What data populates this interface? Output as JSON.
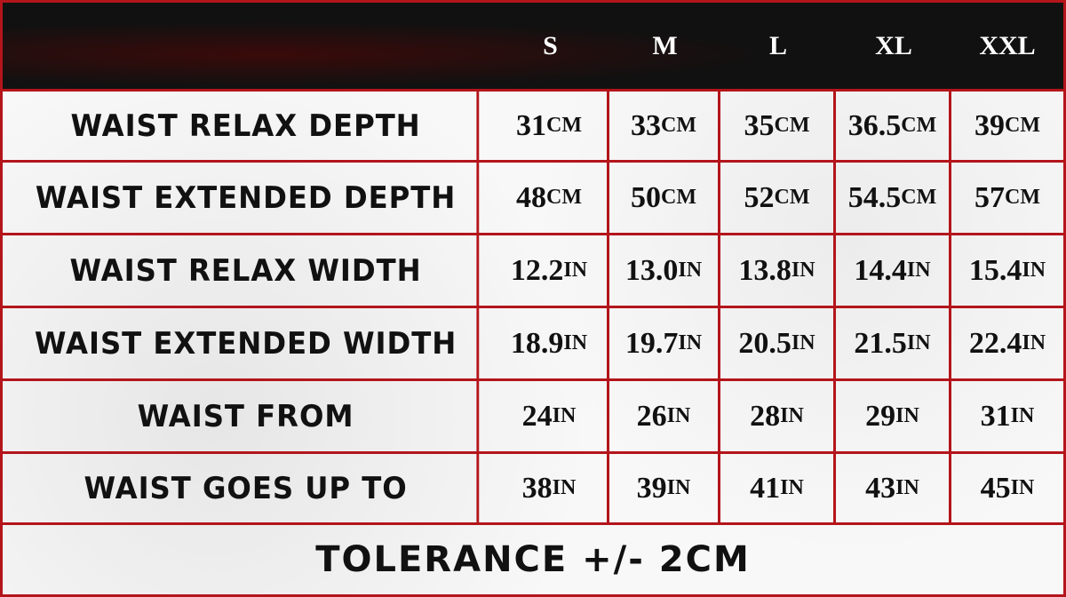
{
  "colors": {
    "border": "#b3151b",
    "header_bg": "#0d0d0d",
    "text": "#111111"
  },
  "sizes": [
    "S",
    "M",
    "L",
    "XL",
    "XXL"
  ],
  "rows": [
    {
      "label": "WAIST RELAX DEPTH",
      "values": [
        {
          "n": "31",
          "u": "CM"
        },
        {
          "n": "33",
          "u": "CM"
        },
        {
          "n": "35",
          "u": "CM"
        },
        {
          "n": "36.5",
          "u": "CM"
        },
        {
          "n": "39",
          "u": "CM"
        }
      ]
    },
    {
      "label": "WAIST EXTENDED DEPTH",
      "values": [
        {
          "n": "48",
          "u": "CM"
        },
        {
          "n": "50",
          "u": "CM"
        },
        {
          "n": "52",
          "u": "CM"
        },
        {
          "n": "54.5",
          "u": "CM"
        },
        {
          "n": "57",
          "u": "CM"
        }
      ]
    },
    {
      "label": "WAIST RELAX WIDTH",
      "values": [
        {
          "n": "12.2",
          "u": "IN"
        },
        {
          "n": "13.0",
          "u": "IN"
        },
        {
          "n": "13.8",
          "u": "IN"
        },
        {
          "n": "14.4",
          "u": "IN"
        },
        {
          "n": "15.4",
          "u": "IN"
        }
      ]
    },
    {
      "label": "WAIST EXTENDED WIDTH",
      "values": [
        {
          "n": "18.9",
          "u": "IN"
        },
        {
          "n": "19.7",
          "u": "IN"
        },
        {
          "n": "20.5",
          "u": "IN"
        },
        {
          "n": "21.5",
          "u": "IN"
        },
        {
          "n": "22.4",
          "u": "IN"
        }
      ]
    },
    {
      "label": "WAIST FROM",
      "values": [
        {
          "n": "24",
          "u": "IN"
        },
        {
          "n": "26",
          "u": "IN"
        },
        {
          "n": "28",
          "u": "IN"
        },
        {
          "n": "29",
          "u": "IN"
        },
        {
          "n": "31",
          "u": "IN"
        }
      ]
    },
    {
      "label": "WAIST GOES UP TO",
      "values": [
        {
          "n": "38",
          "u": "IN"
        },
        {
          "n": "39",
          "u": "IN"
        },
        {
          "n": "41",
          "u": "IN"
        },
        {
          "n": "43",
          "u": "IN"
        },
        {
          "n": "45",
          "u": "IN"
        }
      ]
    }
  ],
  "footer": "TOLERANCE +/- 2CM"
}
